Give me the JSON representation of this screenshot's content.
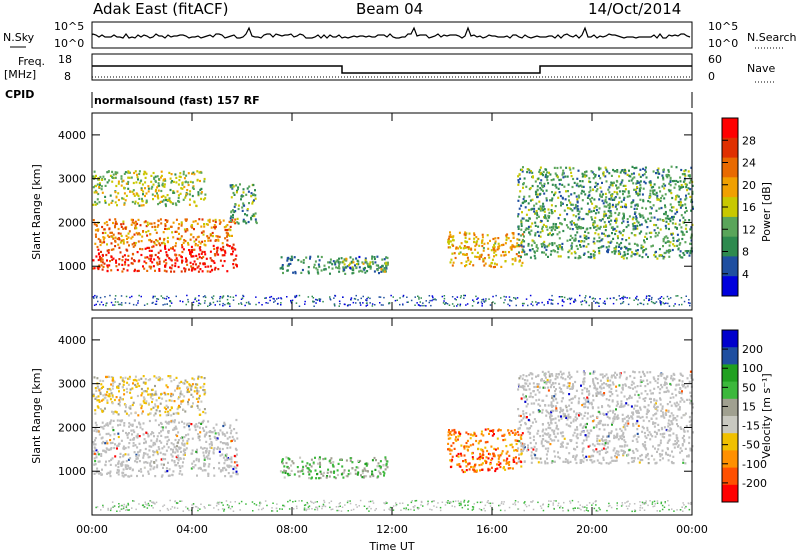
{
  "header": {
    "station": "Adak East (fitACF)",
    "beam": "Beam 04",
    "date": "14/Oct/2014"
  },
  "top_panels": {
    "nsky_label": "N.Sky",
    "nsearch_label": "N.Search",
    "freq_label": "Freq.",
    "freq_unit": "[MHz]",
    "nave_label": "Nave",
    "cpid_label": "CPID",
    "cpid_text": "normalsound (fast) 157 RF",
    "noise_ticks_left": [
      "10^5",
      "10^0"
    ],
    "noise_ticks_right": [
      "10^5",
      "10^0"
    ],
    "freq_ticks": [
      "18",
      "8"
    ],
    "nave_ticks": [
      "60",
      "0"
    ]
  },
  "colors": {
    "power": [
      "#0000dd",
      "#1f4fa0",
      "#2e8a4f",
      "#5aa55a",
      "#c8c800",
      "#f0a000",
      "#e86a00",
      "#e03000",
      "#ff0000"
    ],
    "velocity": [
      "#ff0000",
      "#ff5000",
      "#ff9000",
      "#f0c000",
      "#c8c8c0",
      "#a0a090",
      "#3cb83c",
      "#20a020",
      "#1f4fa0",
      "#0000cc"
    ],
    "ground": "#bebebe"
  },
  "chart_data": [
    {
      "type": "heatmap",
      "name": "power",
      "ylabel": "Slant Range [km]",
      "xlabel": "Time UT",
      "y_ticks": [
        "1000",
        "2000",
        "3000",
        "4000"
      ],
      "x_ticks": [
        "00:00",
        "04:00",
        "08:00",
        "12:00",
        "16:00",
        "20:00",
        "00:00"
      ],
      "xlim": [
        0,
        24
      ],
      "ylim": [
        0,
        4500
      ],
      "colorbar_title": "Power [dB]",
      "colorbar_ticks": [
        "28",
        "24",
        "20",
        "16",
        "12",
        "8",
        "4"
      ],
      "colorbar_range": [
        0,
        30
      ],
      "regions": [
        {
          "t0": 0.0,
          "t1": 5.8,
          "r0": 900,
          "r1": 1500,
          "level": 26
        },
        {
          "t0": 0.0,
          "t1": 5.8,
          "r0": 1500,
          "r1": 2100,
          "level": 20
        },
        {
          "t0": 0.0,
          "t1": 4.5,
          "r0": 2400,
          "r1": 3200,
          "level": 14
        },
        {
          "t0": 5.5,
          "t1": 6.6,
          "r0": 2000,
          "r1": 2900,
          "level": 10
        },
        {
          "t0": 7.5,
          "t1": 11.8,
          "r0": 850,
          "r1": 1250,
          "level": 8
        },
        {
          "t0": 9.8,
          "t1": 11.8,
          "r0": 900,
          "r1": 1200,
          "level": 14
        },
        {
          "t0": 14.2,
          "t1": 17.2,
          "r0": 1000,
          "r1": 1800,
          "level": 18
        },
        {
          "t0": 17.0,
          "t1": 24.0,
          "r0": 1200,
          "r1": 3300,
          "level": 10
        }
      ]
    },
    {
      "type": "heatmap",
      "name": "velocity",
      "ylabel": "Slant Range [km]",
      "xlabel": "Time UT",
      "y_ticks": [
        "1000",
        "2000",
        "3000",
        "4000"
      ],
      "x_ticks": [
        "00:00",
        "04:00",
        "08:00",
        "12:00",
        "16:00",
        "20:00",
        "00:00"
      ],
      "xlim": [
        0,
        24
      ],
      "ylim": [
        0,
        4500
      ],
      "colorbar_title": "Velocity [m s⁻¹]",
      "colorbar_ticks": [
        "200",
        "100",
        "50",
        "15",
        "-15",
        "-50",
        "-100",
        "-200"
      ],
      "colorbar_range": [
        -250,
        250
      ],
      "regions": [
        {
          "t0": 0.0,
          "t1": 5.8,
          "r0": 900,
          "r1": 2200,
          "value": "ground"
        },
        {
          "t0": 0.0,
          "t1": 4.5,
          "r0": 2300,
          "r1": 3200,
          "value": -40
        },
        {
          "t0": 7.5,
          "t1": 11.8,
          "r0": 850,
          "r1": 1350,
          "value": 40
        },
        {
          "t0": 14.2,
          "t1": 17.2,
          "r0": 1000,
          "r1": 2000,
          "value": -150
        },
        {
          "t0": 17.0,
          "t1": 24.0,
          "r0": 1200,
          "r1": 3300,
          "value": "ground"
        }
      ]
    }
  ]
}
